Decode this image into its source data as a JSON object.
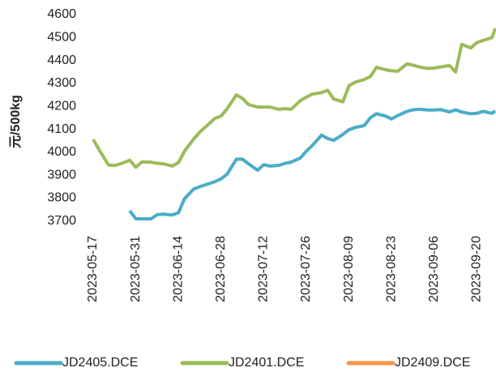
{
  "chart_data": {
    "type": "line",
    "y_label": "元/500kg",
    "x": [
      "2023-05-17",
      "2023-05-19",
      "2023-05-22",
      "2023-05-24",
      "2023-05-26",
      "2023-05-29",
      "2023-05-31",
      "2023-06-02",
      "2023-06-05",
      "2023-06-07",
      "2023-06-09",
      "2023-06-12",
      "2023-06-14",
      "2023-06-16",
      "2023-06-19",
      "2023-06-21",
      "2023-06-26",
      "2023-06-28",
      "2023-06-30",
      "2023-07-03",
      "2023-07-05",
      "2023-07-07",
      "2023-07-10",
      "2023-07-12",
      "2023-07-14",
      "2023-07-17",
      "2023-07-19",
      "2023-07-21",
      "2023-07-24",
      "2023-07-26",
      "2023-07-28",
      "2023-07-31",
      "2023-08-02",
      "2023-08-04",
      "2023-08-07",
      "2023-08-09",
      "2023-08-11",
      "2023-08-14",
      "2023-08-16",
      "2023-08-18",
      "2023-08-21",
      "2023-08-23",
      "2023-08-25",
      "2023-08-28",
      "2023-08-30",
      "2023-09-01",
      "2023-09-04",
      "2023-09-06",
      "2023-09-08",
      "2023-09-11",
      "2023-09-13",
      "2023-09-15",
      "2023-09-18",
      "2023-09-20",
      "2023-09-22",
      "2023-09-25",
      "2023-09-26"
    ],
    "series": [
      {
        "name": "JD2405.DCE",
        "color": "#4bacc6",
        "values": [
          null,
          null,
          null,
          null,
          null,
          3745,
          3710,
          3710,
          3710,
          3728,
          3730,
          3727,
          3737,
          3798,
          3840,
          3850,
          3872,
          3884,
          3905,
          3970,
          3970,
          3950,
          3922,
          3946,
          3940,
          3943,
          3952,
          3957,
          3975,
          4005,
          4030,
          4075,
          4060,
          4052,
          4078,
          4098,
          4108,
          4116,
          4150,
          4168,
          4158,
          4145,
          4160,
          4178,
          4185,
          4187,
          4184,
          4184,
          4186,
          4176,
          4185,
          4175,
          4168,
          4170,
          4178,
          4170,
          4180
        ]
      },
      {
        "name": "JD2401.DCE",
        "color": "#9bbb59",
        "values": [
          4056,
          4010,
          3945,
          3942,
          3950,
          3965,
          3935,
          3958,
          3957,
          3952,
          3950,
          3940,
          3955,
          4005,
          4058,
          4088,
          4148,
          4158,
          4190,
          4250,
          4235,
          4208,
          4197,
          4197,
          4197,
          4187,
          4190,
          4187,
          4225,
          4240,
          4254,
          4260,
          4270,
          4232,
          4220,
          4290,
          4305,
          4317,
          4330,
          4370,
          4360,
          4355,
          4353,
          4385,
          4380,
          4372,
          4365,
          4367,
          4372,
          4378,
          4350,
          4470,
          4455,
          4478,
          4487,
          4500,
          4540
        ]
      },
      {
        "name": "JD2409.DCE",
        "color": "#f79646",
        "values": [
          null,
          null,
          null,
          null,
          null,
          null,
          null,
          null,
          null,
          null,
          null,
          null,
          null,
          null,
          null,
          null,
          null,
          null,
          null,
          null,
          null,
          null,
          null,
          null,
          null,
          null,
          null,
          null,
          null,
          null,
          null,
          null,
          null,
          null,
          null,
          null,
          null,
          null,
          null,
          null,
          null,
          null,
          null,
          null,
          null,
          null,
          null,
          null,
          null,
          null,
          null,
          null,
          null,
          null,
          null,
          null,
          null
        ]
      }
    ],
    "xlim": [
      "2023-05-17",
      "2023-09-26"
    ],
    "xticks": [
      "2023-05-17",
      "2023-05-31",
      "2023-06-14",
      "2023-06-28",
      "2023-07-12",
      "2023-07-26",
      "2023-08-09",
      "2023-08-23",
      "2023-09-06",
      "2023-09-20"
    ],
    "ylim": [
      3650,
      4600
    ],
    "yticks": [
      3700,
      3800,
      3900,
      4000,
      4100,
      4200,
      4300,
      4400,
      4500,
      4600
    ],
    "grid": false,
    "legend": "bottom"
  }
}
